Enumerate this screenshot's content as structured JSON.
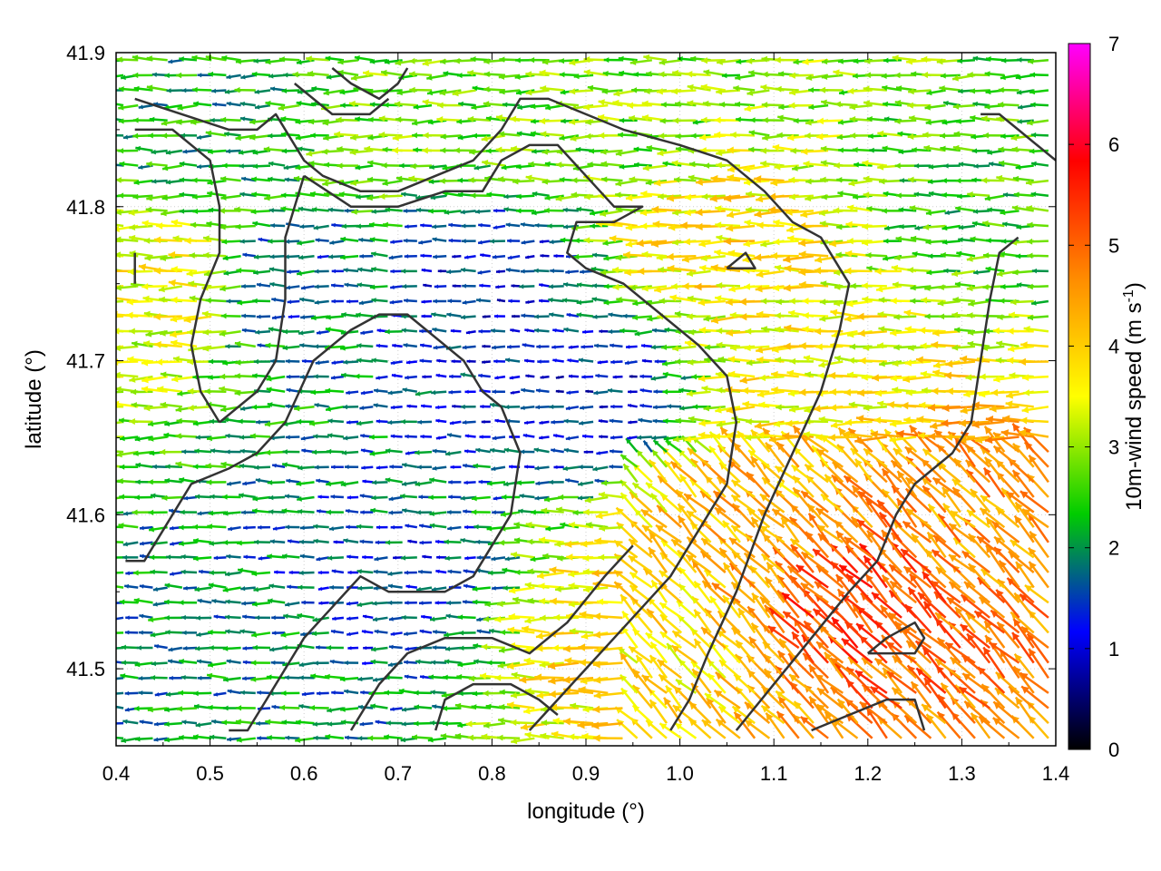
{
  "chart_data": {
    "type": "vector-field",
    "xlabel": "longitude (°)",
    "ylabel": "latitude (°)",
    "xlim": [
      0.4,
      1.4
    ],
    "ylim": [
      41.45,
      41.9
    ],
    "x_ticks": [
      "0.4",
      "0.5",
      "0.6",
      "0.7",
      "0.8",
      "0.9",
      "1.0",
      "1.1",
      "1.2",
      "1.3",
      "1.4"
    ],
    "x_tick_values": [
      0.4,
      0.5,
      0.6,
      0.7,
      0.8,
      0.9,
      1.0,
      1.1,
      1.2,
      1.3,
      1.4
    ],
    "y_ticks": [
      "41.5",
      "41.6",
      "41.7",
      "41.8",
      "41.9"
    ],
    "y_tick_values": [
      41.5,
      41.6,
      41.7,
      41.8,
      41.9
    ],
    "colorbar": {
      "label_main": "10m-wind speed (m s",
      "label_sup": "-1",
      "label_end": ")",
      "range": [
        0,
        7
      ],
      "ticks": [
        "0",
        "1",
        "2",
        "3",
        "4",
        "5",
        "6",
        "7"
      ],
      "tick_values": [
        0,
        1,
        2,
        3,
        4,
        5,
        6,
        7
      ],
      "colors": [
        "#000000",
        "#0000ff",
        "#00cc00",
        "#ffff00",
        "#ff8c00",
        "#ff0000",
        "#ff00ff"
      ]
    },
    "grid": true,
    "wind_field": {
      "dominant_direction": "westward",
      "samples": [
        {
          "lon": 0.45,
          "lat": 41.75,
          "speed": 3.5
        },
        {
          "lon": 0.5,
          "lat": 41.85,
          "speed": 2.2
        },
        {
          "lon": 0.6,
          "lat": 41.75,
          "speed": 1.8
        },
        {
          "lon": 0.7,
          "lat": 41.85,
          "speed": 2.8
        },
        {
          "lon": 0.8,
          "lat": 41.75,
          "speed": 1.3
        },
        {
          "lon": 0.9,
          "lat": 41.68,
          "speed": 1.2
        },
        {
          "lon": 0.95,
          "lat": 41.85,
          "speed": 2.8
        },
        {
          "lon": 1.05,
          "lat": 41.78,
          "speed": 3.8
        },
        {
          "lon": 1.15,
          "lat": 41.7,
          "speed": 3.6
        },
        {
          "lon": 1.2,
          "lat": 41.55,
          "speed": 5.2
        },
        {
          "lon": 1.3,
          "lat": 41.6,
          "speed": 4.5
        },
        {
          "lon": 1.35,
          "lat": 41.8,
          "speed": 2.5
        },
        {
          "lon": 0.55,
          "lat": 41.5,
          "speed": 2.0
        },
        {
          "lon": 0.7,
          "lat": 41.55,
          "speed": 1.5
        },
        {
          "lon": 0.95,
          "lat": 41.52,
          "speed": 3.8
        },
        {
          "lon": 1.1,
          "lat": 41.6,
          "speed": 4.2
        }
      ]
    },
    "contours": [
      [
        [
          0.42,
          41.87
        ],
        [
          0.47,
          41.86
        ],
        [
          0.52,
          41.85
        ],
        [
          0.55,
          41.85
        ],
        [
          0.57,
          41.86
        ],
        [
          0.6,
          41.83
        ],
        [
          0.62,
          41.82
        ],
        [
          0.66,
          41.81
        ],
        [
          0.7,
          41.81
        ],
        [
          0.74,
          41.82
        ],
        [
          0.78,
          41.83
        ],
        [
          0.81,
          41.85
        ],
        [
          0.83,
          41.87
        ],
        [
          0.86,
          41.87
        ],
        [
          0.9,
          41.86
        ],
        [
          0.94,
          41.85
        ],
        [
          1.0,
          41.84
        ],
        [
          1.05,
          41.83
        ],
        [
          1.09,
          41.81
        ],
        [
          1.12,
          41.79
        ],
        [
          1.15,
          41.78
        ],
        [
          1.18,
          41.75
        ],
        [
          1.17,
          41.72
        ],
        [
          1.15,
          41.68
        ],
        [
          1.12,
          41.64
        ],
        [
          1.09,
          41.6
        ],
        [
          1.06,
          41.55
        ],
        [
          1.03,
          41.51
        ],
        [
          1.01,
          41.48
        ],
        [
          0.99,
          41.46
        ]
      ],
      [
        [
          0.42,
          41.85
        ],
        [
          0.46,
          41.85
        ],
        [
          0.5,
          41.83
        ],
        [
          0.51,
          41.8
        ],
        [
          0.51,
          41.77
        ],
        [
          0.49,
          41.74
        ],
        [
          0.48,
          41.71
        ],
        [
          0.49,
          41.68
        ],
        [
          0.51,
          41.66
        ]
      ],
      [
        [
          0.6,
          41.82
        ],
        [
          0.58,
          41.78
        ],
        [
          0.58,
          41.74
        ],
        [
          0.57,
          41.7
        ],
        [
          0.55,
          41.68
        ],
        [
          0.53,
          41.67
        ],
        [
          0.51,
          41.66
        ]
      ],
      [
        [
          0.41,
          41.57
        ],
        [
          0.43,
          41.57
        ],
        [
          0.46,
          41.6
        ],
        [
          0.48,
          41.62
        ],
        [
          0.52,
          41.63
        ],
        [
          0.55,
          41.64
        ],
        [
          0.58,
          41.66
        ],
        [
          0.61,
          41.7
        ],
        [
          0.65,
          41.72
        ],
        [
          0.68,
          41.73
        ],
        [
          0.71,
          41.73
        ],
        [
          0.73,
          41.72
        ],
        [
          0.77,
          41.7
        ],
        [
          0.79,
          41.68
        ],
        [
          0.81,
          41.67
        ]
      ],
      [
        [
          0.6,
          41.82
        ],
        [
          0.65,
          41.8
        ],
        [
          0.7,
          41.8
        ],
        [
          0.75,
          41.81
        ],
        [
          0.79,
          41.81
        ],
        [
          0.81,
          41.83
        ],
        [
          0.84,
          41.84
        ],
        [
          0.87,
          41.84
        ],
        [
          0.9,
          41.82
        ],
        [
          0.93,
          41.8
        ],
        [
          0.96,
          41.8
        ],
        [
          0.93,
          41.79
        ],
        [
          0.89,
          41.79
        ],
        [
          0.88,
          41.77
        ],
        [
          0.9,
          41.76
        ],
        [
          0.94,
          41.75
        ],
        [
          0.98,
          41.73
        ],
        [
          1.02,
          41.71
        ],
        [
          1.05,
          41.69
        ],
        [
          1.06,
          41.66
        ],
        [
          1.05,
          41.62
        ],
        [
          1.02,
          41.59
        ],
        [
          0.99,
          41.56
        ],
        [
          0.96,
          41.54
        ],
        [
          0.93,
          41.52
        ],
        [
          0.9,
          41.5
        ],
        [
          0.87,
          41.48
        ],
        [
          0.84,
          41.46
        ]
      ],
      [
        [
          0.81,
          41.67
        ],
        [
          0.83,
          41.64
        ],
        [
          0.82,
          41.6
        ],
        [
          0.8,
          41.58
        ],
        [
          0.78,
          41.56
        ],
        [
          0.75,
          41.55
        ],
        [
          0.72,
          41.55
        ],
        [
          0.69,
          41.55
        ],
        [
          0.66,
          41.56
        ],
        [
          0.63,
          41.54
        ],
        [
          0.6,
          41.52
        ],
        [
          0.58,
          41.5
        ],
        [
          0.56,
          41.48
        ],
        [
          0.54,
          41.46
        ],
        [
          0.52,
          41.46
        ]
      ],
      [
        [
          0.65,
          41.46
        ],
        [
          0.68,
          41.49
        ],
        [
          0.71,
          41.51
        ],
        [
          0.75,
          41.52
        ],
        [
          0.8,
          41.52
        ],
        [
          0.84,
          41.51
        ],
        [
          0.88,
          41.53
        ],
        [
          0.92,
          41.56
        ],
        [
          0.95,
          41.58
        ]
      ],
      [
        [
          0.74,
          41.46
        ],
        [
          0.75,
          41.48
        ],
        [
          0.78,
          41.49
        ],
        [
          0.82,
          41.49
        ],
        [
          0.85,
          41.48
        ],
        [
          0.87,
          41.47
        ]
      ],
      [
        [
          1.06,
          41.46
        ],
        [
          1.1,
          41.49
        ],
        [
          1.14,
          41.52
        ],
        [
          1.18,
          41.55
        ],
        [
          1.21,
          41.57
        ],
        [
          1.23,
          41.6
        ],
        [
          1.25,
          41.62
        ],
        [
          1.27,
          41.63
        ],
        [
          1.29,
          41.64
        ],
        [
          1.31,
          41.66
        ],
        [
          1.32,
          41.7
        ],
        [
          1.33,
          41.74
        ],
        [
          1.34,
          41.77
        ],
        [
          1.36,
          41.78
        ]
      ],
      [
        [
          1.14,
          41.46
        ],
        [
          1.18,
          41.47
        ],
        [
          1.22,
          41.48
        ],
        [
          1.25,
          41.48
        ],
        [
          1.26,
          41.46
        ]
      ],
      [
        [
          1.2,
          41.51
        ],
        [
          1.23,
          41.51
        ],
        [
          1.25,
          41.51
        ],
        [
          1.26,
          41.52
        ],
        [
          1.25,
          41.53
        ],
        [
          1.22,
          41.52
        ],
        [
          1.2,
          41.51
        ]
      ],
      [
        [
          0.63,
          41.89
        ],
        [
          0.65,
          41.88
        ],
        [
          0.68,
          41.87
        ],
        [
          0.7,
          41.88
        ],
        [
          0.71,
          41.89
        ]
      ],
      [
        [
          0.59,
          41.88
        ],
        [
          0.63,
          41.86
        ],
        [
          0.67,
          41.86
        ],
        [
          0.69,
          41.87
        ]
      ],
      [
        [
          1.05,
          41.76
        ],
        [
          1.07,
          41.76
        ],
        [
          1.08,
          41.76
        ],
        [
          1.07,
          41.77
        ],
        [
          1.05,
          41.76
        ]
      ],
      [
        [
          1.32,
          41.86
        ],
        [
          1.34,
          41.86
        ],
        [
          1.36,
          41.85
        ],
        [
          1.38,
          41.84
        ],
        [
          1.4,
          41.83
        ]
      ],
      [
        [
          0.42,
          41.77
        ],
        [
          0.42,
          41.76
        ],
        [
          0.42,
          41.75
        ]
      ]
    ]
  }
}
